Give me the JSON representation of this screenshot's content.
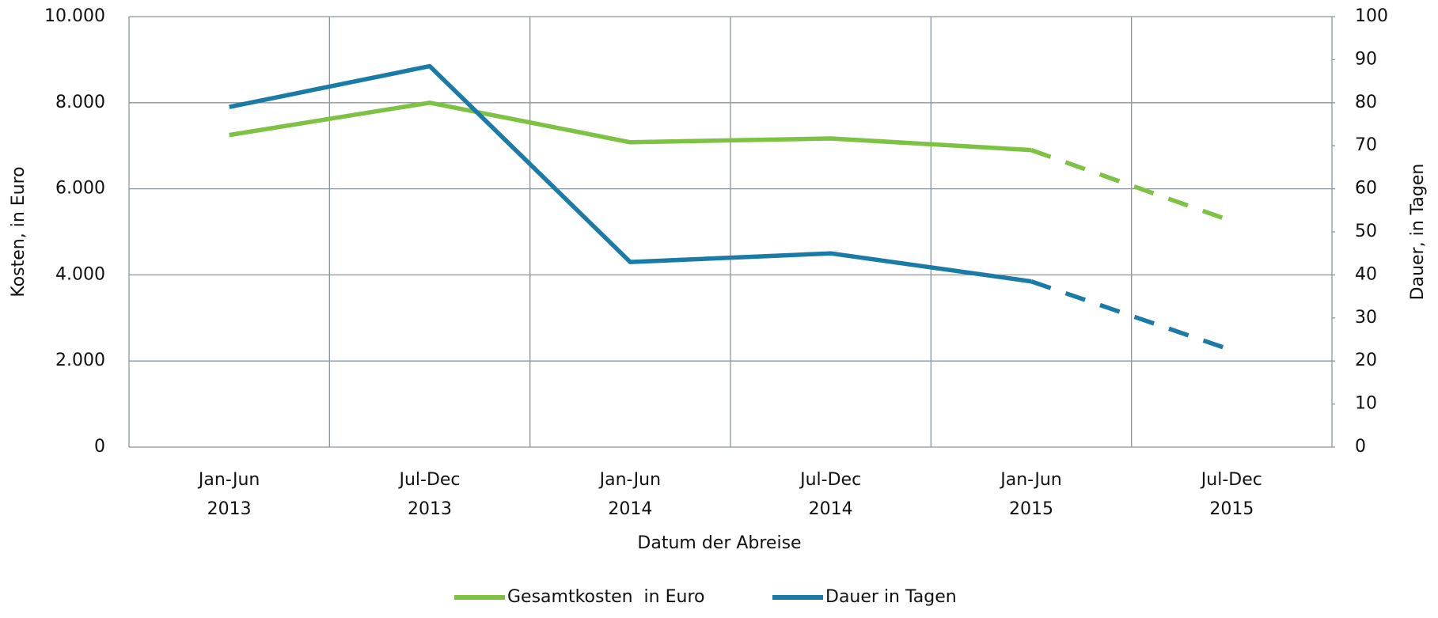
{
  "chart_data": {
    "type": "line",
    "x_label": "Datum der Abreise",
    "y_label": "Kosten, in Euro",
    "y2_label": "Dauer, in Tagen",
    "categories": [
      "Jan-Jun 2013",
      "Jul-Dec 2013",
      "Jan-Jun 2014",
      "Jul-Dec 2014",
      "Jan-Jun 2015",
      "Jul-Dec 2015"
    ],
    "series": [
      {
        "name": "Gesamtkosten  in Euro",
        "color": "#7dc242",
        "values": [
          7250,
          8000,
          7080,
          7170,
          6900,
          5250
        ]
      },
      {
        "name": "Dauer in Tagen",
        "color": "#1a7ba6",
        "axis": "y2",
        "values": [
          79,
          88.5,
          43,
          45,
          38.5,
          22.5
        ]
      }
    ],
    "dash_start": 4,
    "ylim": [
      0,
      10000
    ],
    "yticks": [
      0,
      {
        "value": 2000,
        "label": "2.000"
      },
      {
        "value": 4000,
        "label": "4.000"
      },
      {
        "value": 6000,
        "label": "6.000"
      },
      {
        "value": 8000,
        "label": "8.000"
      },
      {
        "value": 10000,
        "label": "10.000"
      }
    ],
    "y2lim": [
      0,
      100
    ],
    "y2ticks": [
      0,
      10,
      20,
      30,
      40,
      50,
      60,
      70,
      80,
      90,
      100
    ],
    "grid": true,
    "legend": "bottom"
  }
}
